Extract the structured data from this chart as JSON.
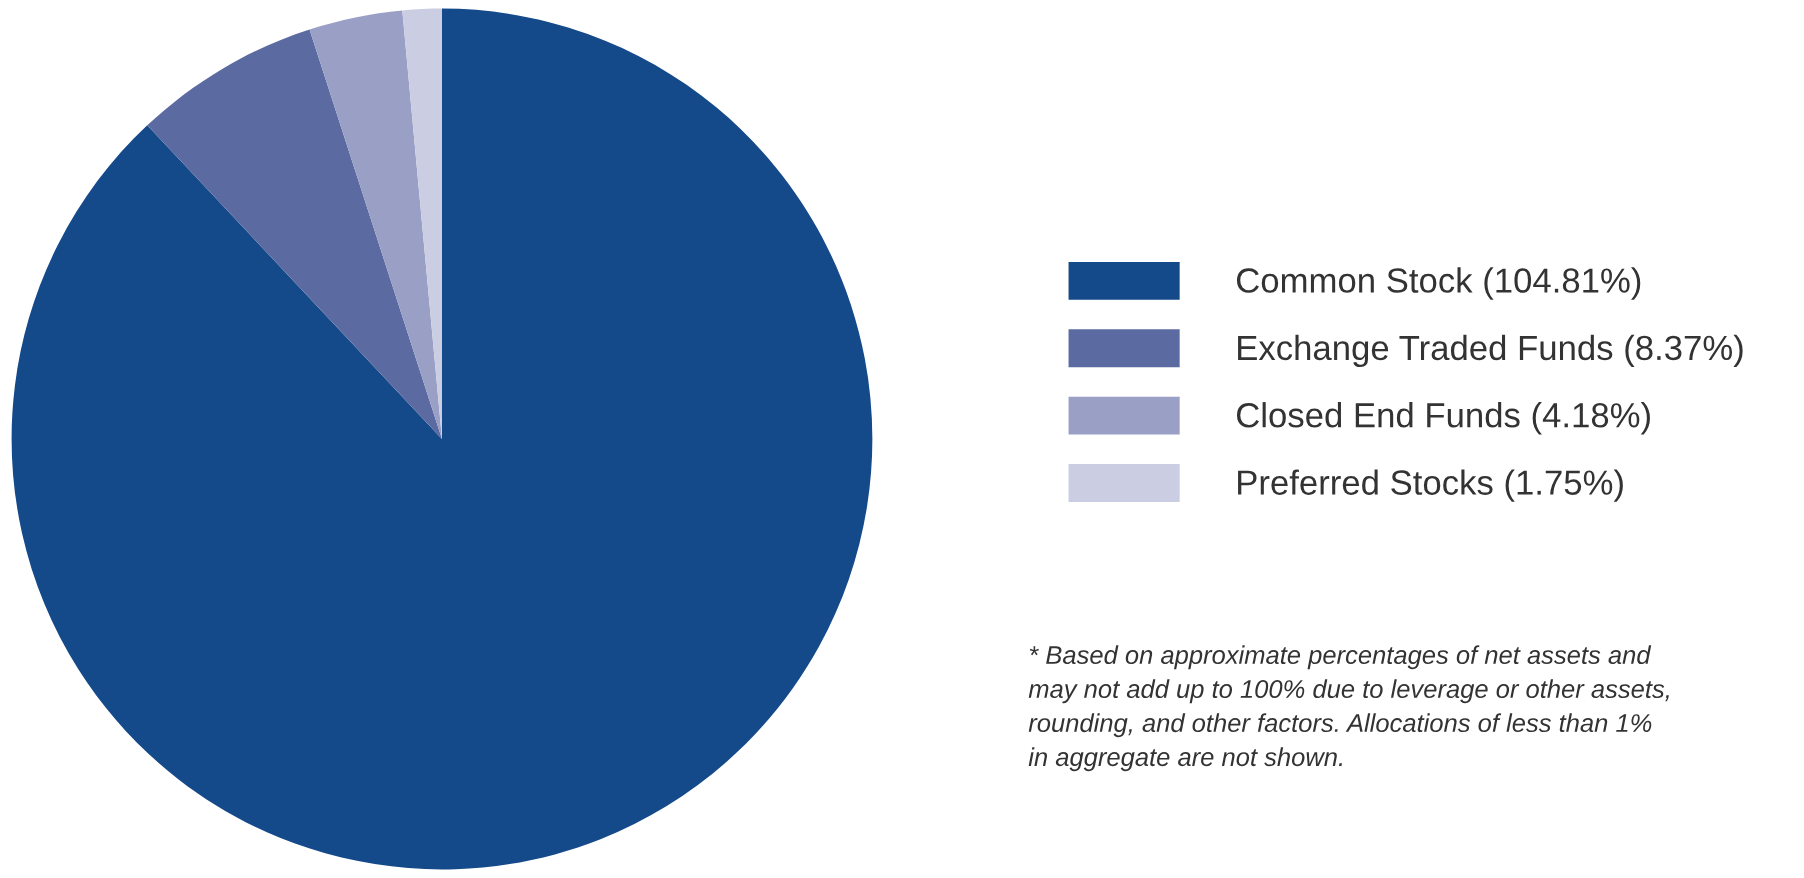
{
  "chart_data": {
    "type": "pie",
    "categories": [
      "Common Stock (104.81%)",
      "Exchange Traded Funds (8.37%)",
      "Closed End Funds (4.18%)",
      "Preferred Stocks (1.75%)"
    ],
    "values": [
      104.81,
      8.37,
      4.18,
      1.75
    ],
    "colors": [
      "#14498a",
      "#5b6ba1",
      "#9a9fc6",
      "#cbcee2"
    ],
    "legend": "right",
    "annotations": [
      "* Based on approximate percentages of net assets and\nmay not add up to 100% due to leverage or other assets,\nrounding, and other factors. Allocations of less than 1%\nin aggregate are not shown."
    ]
  }
}
